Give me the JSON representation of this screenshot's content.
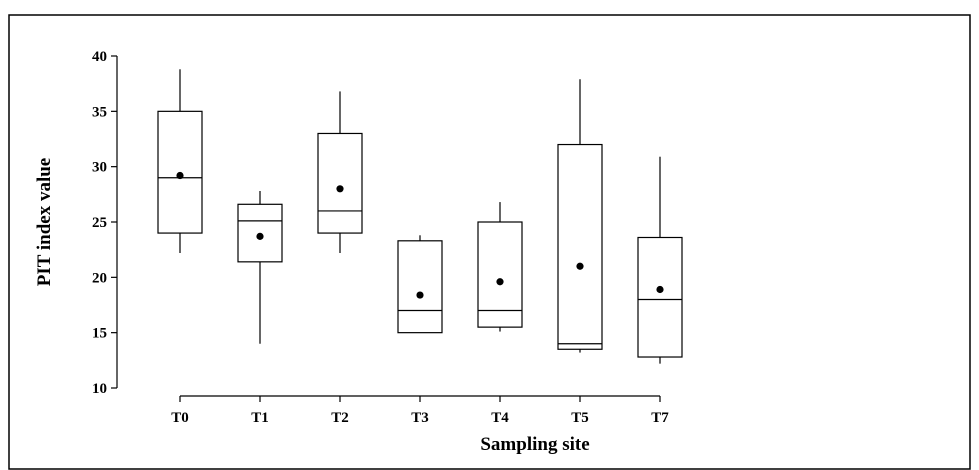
{
  "chart_data": {
    "type": "box",
    "xlabel": "Sampling site",
    "ylabel": "PIT index value",
    "ylim": [
      10,
      40
    ],
    "yticks": [
      10,
      15,
      20,
      25,
      30,
      35,
      40
    ],
    "categories": [
      "T0",
      "T1",
      "T2",
      "T3",
      "T4",
      "T5",
      "T7"
    ],
    "boxes": [
      {
        "label": "T0",
        "min": 22.2,
        "q1": 24.0,
        "median": 29.0,
        "q3": 35.0,
        "max": 38.8,
        "mean": 29.2
      },
      {
        "label": "T1",
        "min": 14.0,
        "q1": 21.4,
        "median": 25.1,
        "q3": 26.6,
        "max": 27.8,
        "mean": 23.7
      },
      {
        "label": "T2",
        "min": 22.2,
        "q1": 24.0,
        "median": 26.0,
        "q3": 33.0,
        "max": 36.8,
        "mean": 28.0
      },
      {
        "label": "T3",
        "min": 15.0,
        "q1": 15.0,
        "median": 17.0,
        "q3": 23.3,
        "max": 23.8,
        "mean": 18.4
      },
      {
        "label": "T4",
        "min": 15.1,
        "q1": 15.5,
        "median": 17.0,
        "q3": 25.0,
        "max": 26.8,
        "mean": 19.6
      },
      {
        "label": "T5",
        "min": 13.2,
        "q1": 13.5,
        "median": 14.0,
        "q3": 32.0,
        "max": 37.9,
        "mean": 21.0
      },
      {
        "label": "T7",
        "min": 12.2,
        "q1": 12.8,
        "median": 18.0,
        "q3": 23.6,
        "max": 30.9,
        "mean": 18.9
      }
    ],
    "grid": false,
    "legend": "none"
  }
}
